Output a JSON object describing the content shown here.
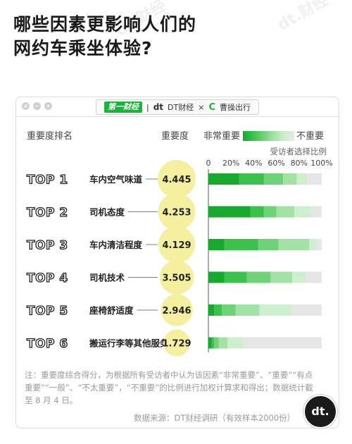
{
  "title_lines": [
    "哪些因素更影响人们的",
    "网约车乘坐体验?"
  ],
  "header": {
    "brand_yicai": "第一财经",
    "divider": "|",
    "brand_dt_mark": "dt",
    "brand_dt": "DT财经",
    "cross": "×",
    "brand_cc_mark": "C",
    "brand_cc": "曹操出行"
  },
  "badge_text": "dt.",
  "legend": {
    "high": "非常重要",
    "low": "不重要"
  },
  "legend_colors": [
    "#16a92e",
    "#3bc24c",
    "#6ed276",
    "#a2e2a5",
    "#cdefce",
    "#e6e6e6"
  ],
  "chart_data": {
    "type": "bar",
    "orientation": "horizontal",
    "stacked": true,
    "headers": {
      "category": "重要度排名",
      "score": "重要度",
      "axis": "受访者选择比例"
    },
    "ticks": [
      "0",
      "20%",
      "40%",
      "60%",
      "80%",
      "100%"
    ],
    "xlim": [
      0,
      100
    ],
    "ranks": [
      "TOP 1",
      "TOP 2",
      "TOP 3",
      "TOP 4",
      "TOP 5",
      "TOP 6"
    ],
    "categories": [
      "车内空气味道",
      "司机态度",
      "车内清洁程度",
      "司机技术",
      "座椅舒适度",
      "搬运行李等其他服务"
    ],
    "scores": [
      "4.445",
      "4.253",
      "4.129",
      "3.505",
      "2.946",
      "1.729"
    ],
    "segments": [
      [
        27,
        22,
        17,
        12,
        9,
        13
      ],
      [
        37,
        12,
        11,
        16,
        14,
        10
      ],
      [
        14,
        30,
        18,
        27,
        6,
        5
      ],
      [
        14,
        20,
        21,
        19,
        12,
        14
      ],
      [
        5,
        7,
        12,
        21,
        28,
        27
      ],
      [
        3,
        2,
        4,
        8,
        14,
        69
      ]
    ]
  },
  "note": "注：重要度综合得分，为根据所有受访者中认为该因素“非常重要”、“重要”“有点重要”“一般”、“不太重要”，“不重要”的比例进行加权计算求和得出；数据统计截至 8 月 4 日。",
  "source": "数据来源：DT财经调研（有效样本2000份）"
}
